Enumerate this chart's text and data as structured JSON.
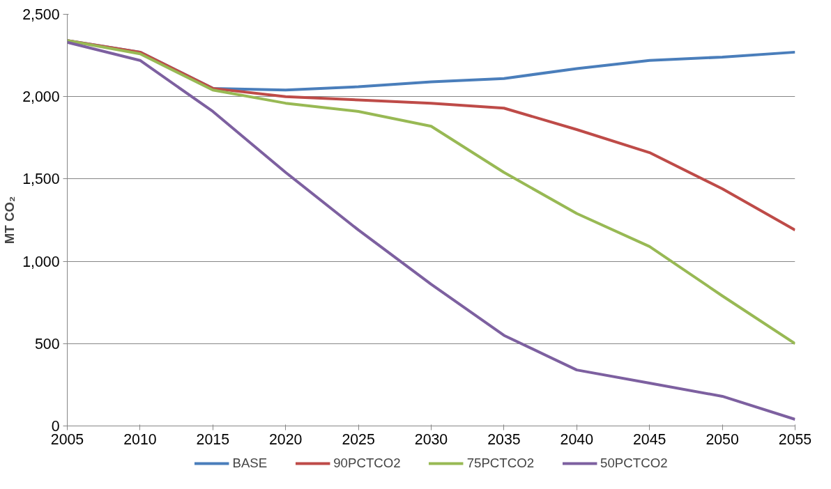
{
  "chart_data": {
    "type": "line",
    "ylabel": "MT CO₂",
    "x": [
      2005,
      2010,
      2015,
      2020,
      2025,
      2030,
      2035,
      2040,
      2045,
      2050,
      2055
    ],
    "xlim": [
      2005,
      2055
    ],
    "xticks": [
      2005,
      2010,
      2015,
      2020,
      2025,
      2030,
      2035,
      2040,
      2045,
      2050,
      2055
    ],
    "ylim": [
      0,
      2500
    ],
    "yticks": [
      {
        "value": 0,
        "label": "0"
      },
      {
        "value": 500,
        "label": "500"
      },
      {
        "value": 1000,
        "label": "1,000"
      },
      {
        "value": 1500,
        "label": "1,500"
      },
      {
        "value": 2000,
        "label": "2,000"
      },
      {
        "value": 2500,
        "label": "2,500"
      }
    ],
    "grid": "y",
    "legend": "bottom",
    "marker": "none",
    "line_style": "solid",
    "series": [
      {
        "name": "BASE",
        "color": "#4a7ebb",
        "values": [
          2340,
          2270,
          2050,
          2040,
          2060,
          2090,
          2110,
          2170,
          2220,
          2240,
          2270
        ]
      },
      {
        "name": "90PCTCO2",
        "color": "#be4b48",
        "values": [
          2340,
          2270,
          2050,
          2000,
          1980,
          1960,
          1930,
          1800,
          1660,
          1440,
          1190
        ]
      },
      {
        "name": "75PCTCO2",
        "color": "#98b954",
        "values": [
          2340,
          2260,
          2040,
          1960,
          1910,
          1820,
          1540,
          1290,
          1090,
          790,
          500
        ]
      },
      {
        "name": "50PCTCO2",
        "color": "#7d60a0",
        "values": [
          2330,
          2220,
          1910,
          1540,
          1190,
          860,
          550,
          340,
          260,
          180,
          40
        ]
      }
    ]
  }
}
